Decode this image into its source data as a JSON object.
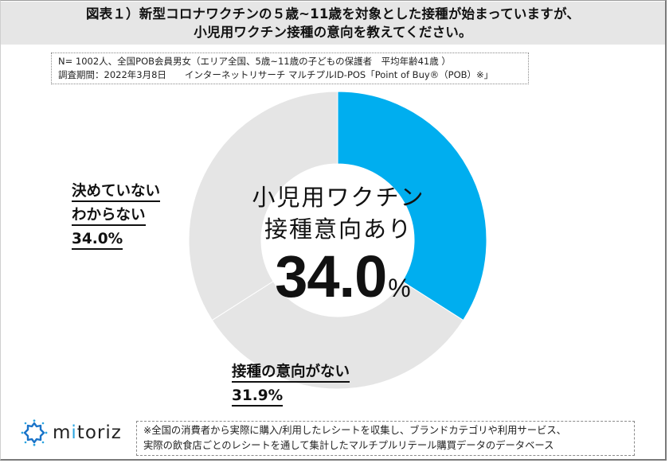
{
  "title": {
    "line1": "図表１）新型コロナワクチンの５歳~11歳を対象とした接種が始まっていますが、",
    "line2": "小児用ワクチン接種の意向を教えてください。"
  },
  "survey_info": {
    "line1": "N= 1002人、全国POB会員男女（エリア全国、5歳~11歳の子どもの保護者　平均年齢41歳 ）",
    "line2": "調査期間：2022年3月8日　　インターネットリサーチ マルチプルID-POS「Point of Buy®（POB）※」"
  },
  "center": {
    "label_line1": "小児用ワクチン",
    "label_line2": "接種意向あり",
    "value": "34.0",
    "unit": "%"
  },
  "labels": {
    "undecided_line1": "決めていない",
    "undecided_line2": "わからない",
    "undecided_value": "34.0%",
    "no_intent_line1": "接種の意向がない",
    "no_intent_value": "31.9%"
  },
  "logo": {
    "text_prefix": "m",
    "text_i": "i",
    "text_suffix": "toriz"
  },
  "footnote": {
    "line1": "※全国の消費者から実際に購入/利用したレシートを収集し、ブランドカテゴリや利用サービス、",
    "line2": "実際の飲食店ごとのレシートを通して集計したマルチプルリテール購買データのデータベース"
  },
  "colors": {
    "accent_blue": "#00aeef",
    "gray_slice": "#e5e5e5",
    "title_bg": "#e6e6e6"
  },
  "chart_data": {
    "type": "pie",
    "subtype": "donut",
    "title": "小児用ワクチン接種の意向を教えてください。",
    "start_angle": "12 o'clock, clockwise",
    "categories": [
      "小児用ワクチン接種意向あり",
      "接種の意向がない",
      "決めていない・わからない"
    ],
    "values": [
      34.0,
      31.9,
      34.0
    ],
    "unit": "%",
    "slice_colors": [
      "#00aeef",
      "#e5e5e5",
      "#e5e5e5"
    ],
    "legend": "none (direct labels)"
  }
}
